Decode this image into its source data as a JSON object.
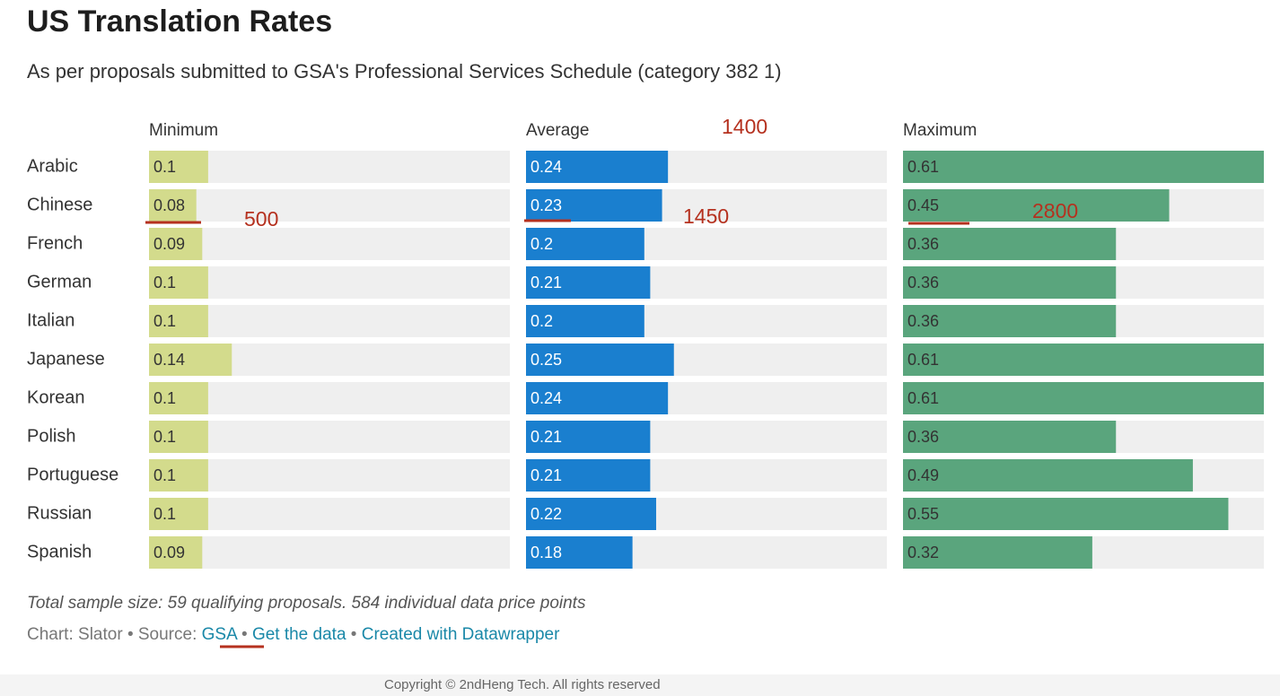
{
  "chart_data": {
    "type": "bar",
    "title": "US Translation Rates",
    "subtitle": "As per proposals submitted to GSA's Professional Services Schedule (category 382 1)",
    "categories": [
      "Arabic",
      "Chinese",
      "French",
      "German",
      "Italian",
      "Japanese",
      "Korean",
      "Polish",
      "Portuguese",
      "Russian",
      "Spanish"
    ],
    "series": [
      {
        "name": "Minimum",
        "color": "#d3db8c",
        "label_color": "#333333",
        "values": [
          0.1,
          0.08,
          0.09,
          0.1,
          0.1,
          0.14,
          0.1,
          0.1,
          0.1,
          0.1,
          0.09
        ]
      },
      {
        "name": "Average",
        "color": "#1a7fcf",
        "label_color": "#ffffff",
        "values": [
          0.24,
          0.23,
          0.2,
          0.21,
          0.2,
          0.25,
          0.24,
          0.21,
          0.21,
          0.22,
          0.18
        ]
      },
      {
        "name": "Maximum",
        "color": "#5aa57d",
        "label_color": "#333333",
        "values": [
          0.61,
          0.45,
          0.36,
          0.36,
          0.36,
          0.61,
          0.61,
          0.36,
          0.49,
          0.55,
          0.32
        ]
      }
    ],
    "xlim": [
      0,
      0.61
    ],
    "track_color": "#efefef",
    "annotations": [
      {
        "text": "500",
        "series": 0,
        "category": 1
      },
      {
        "text": "1400",
        "series": 1,
        "category": 0
      },
      {
        "text": "1450",
        "series": 1,
        "category": 1
      },
      {
        "text": "2800",
        "series": 2,
        "category": 1
      }
    ],
    "notes": "Total sample size: 59 qualifying proposals. 584 individual data price points",
    "credit": "Chart: Slator",
    "source_label": "Source:",
    "links": [
      "GSA",
      "Get the data",
      "Created with Datawrapper"
    ],
    "copyright": "Copyright © 2ndHeng Tech. All rights reserved"
  }
}
